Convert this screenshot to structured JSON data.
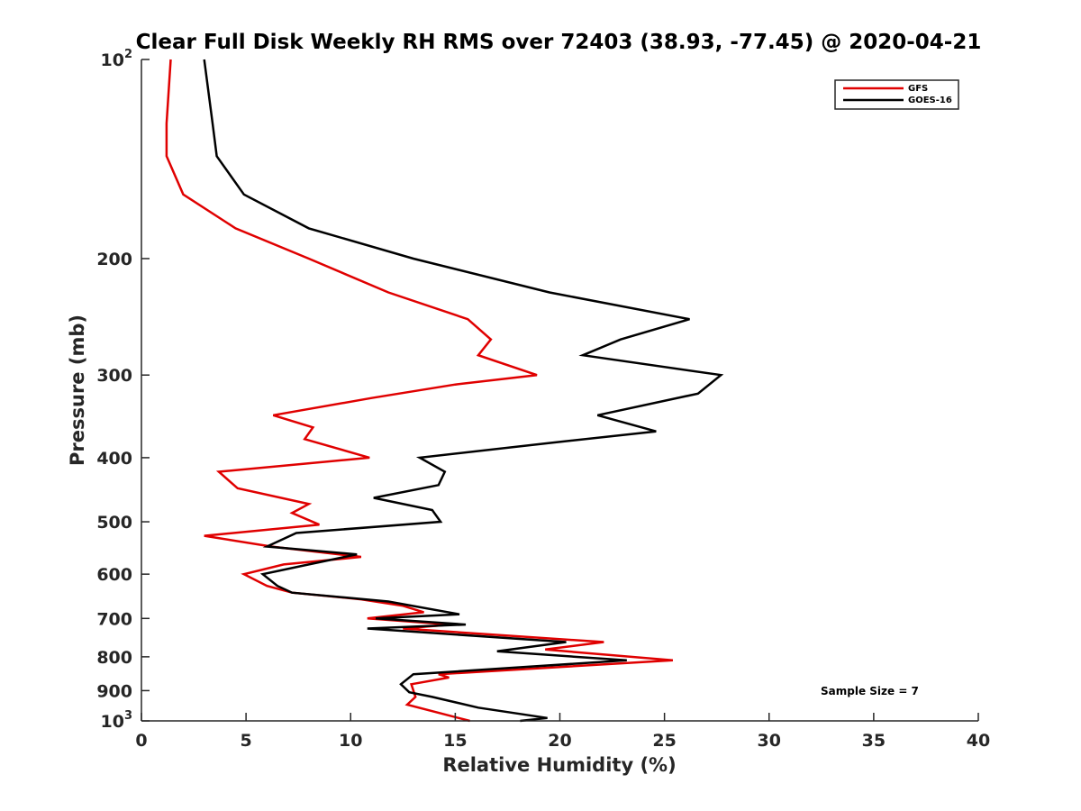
{
  "chart_data": {
    "type": "line",
    "title": "Clear Full Disk Weekly RH RMS over 72403 (38.93, -77.45) @ 2020-04-21",
    "xlabel": "Relative Humidity (%)",
    "ylabel": "Pressure (mb)",
    "xlim": [
      0,
      40
    ],
    "ylim": [
      100,
      1000
    ],
    "yscale": "log",
    "y_reversed": true,
    "grid": false,
    "legend_position": "top-right",
    "annotation": "Sample Size = 7",
    "x_ticks": [
      {
        "value": 0,
        "label": "0"
      },
      {
        "value": 5,
        "label": "5"
      },
      {
        "value": 10,
        "label": "10"
      },
      {
        "value": 15,
        "label": "15"
      },
      {
        "value": 20,
        "label": "20"
      },
      {
        "value": 25,
        "label": "25"
      },
      {
        "value": 30,
        "label": "30"
      },
      {
        "value": 35,
        "label": "35"
      },
      {
        "value": 40,
        "label": "40"
      }
    ],
    "y_ticks": [
      {
        "value": 100,
        "base": "10",
        "exp": "2"
      },
      {
        "value": 200,
        "base": "200",
        "exp": ""
      },
      {
        "value": 300,
        "base": "300",
        "exp": ""
      },
      {
        "value": 400,
        "base": "400",
        "exp": ""
      },
      {
        "value": 500,
        "base": "500",
        "exp": ""
      },
      {
        "value": 600,
        "base": "600",
        "exp": ""
      },
      {
        "value": 700,
        "base": "700",
        "exp": ""
      },
      {
        "value": 800,
        "base": "800",
        "exp": ""
      },
      {
        "value": 900,
        "base": "900",
        "exp": ""
      },
      {
        "value": 1000,
        "base": "10",
        "exp": "3"
      }
    ],
    "series": [
      {
        "name": "GFS",
        "color": "#e00000",
        "points": [
          [
            1.4,
            100
          ],
          [
            1.2,
            125
          ],
          [
            1.2,
            140
          ],
          [
            2.0,
            160
          ],
          [
            4.5,
            180
          ],
          [
            8.0,
            200
          ],
          [
            11.8,
            225
          ],
          [
            15.6,
            247
          ],
          [
            16.7,
            265
          ],
          [
            16.1,
            280
          ],
          [
            18.9,
            300
          ],
          [
            15.0,
            310
          ],
          [
            11.0,
            325
          ],
          [
            6.3,
            345
          ],
          [
            8.2,
            360
          ],
          [
            7.8,
            375
          ],
          [
            10.9,
            400
          ],
          [
            3.7,
            420
          ],
          [
            4.6,
            445
          ],
          [
            8.0,
            470
          ],
          [
            7.2,
            485
          ],
          [
            8.5,
            505
          ],
          [
            3.0,
            525
          ],
          [
            6.2,
            545
          ],
          [
            10.5,
            565
          ],
          [
            6.8,
            580
          ],
          [
            4.9,
            600
          ],
          [
            6.0,
            625
          ],
          [
            7.2,
            640
          ],
          [
            10.5,
            655
          ],
          [
            12.5,
            670
          ],
          [
            13.5,
            685
          ],
          [
            10.8,
            700
          ],
          [
            14.8,
            715
          ],
          [
            12.5,
            725
          ],
          [
            22.1,
            760
          ],
          [
            19.3,
            780
          ],
          [
            25.4,
            810
          ],
          [
            14.2,
            850
          ],
          [
            14.7,
            860
          ],
          [
            12.9,
            880
          ],
          [
            13.1,
            920
          ],
          [
            12.7,
            945
          ],
          [
            15.7,
            1000
          ]
        ]
      },
      {
        "name": "GOES-16",
        "color": "#000000",
        "points": [
          [
            3.0,
            100
          ],
          [
            3.4,
            125
          ],
          [
            3.6,
            140
          ],
          [
            4.9,
            160
          ],
          [
            8.0,
            180
          ],
          [
            13.0,
            200
          ],
          [
            19.5,
            225
          ],
          [
            26.2,
            247
          ],
          [
            22.9,
            265
          ],
          [
            21.1,
            280
          ],
          [
            27.7,
            300
          ],
          [
            26.6,
            320
          ],
          [
            21.8,
            345
          ],
          [
            24.6,
            365
          ],
          [
            19.5,
            380
          ],
          [
            13.3,
            400
          ],
          [
            14.5,
            420
          ],
          [
            14.2,
            440
          ],
          [
            11.1,
            460
          ],
          [
            13.9,
            480
          ],
          [
            14.3,
            500
          ],
          [
            7.4,
            520
          ],
          [
            6.0,
            545
          ],
          [
            10.3,
            560
          ],
          [
            8.0,
            580
          ],
          [
            5.8,
            600
          ],
          [
            6.5,
            625
          ],
          [
            7.2,
            640
          ],
          [
            11.8,
            660
          ],
          [
            15.2,
            690
          ],
          [
            11.2,
            700
          ],
          [
            15.5,
            715
          ],
          [
            10.8,
            725
          ],
          [
            20.3,
            760
          ],
          [
            17.0,
            785
          ],
          [
            23.2,
            810
          ],
          [
            13.0,
            850
          ],
          [
            12.4,
            880
          ],
          [
            12.8,
            905
          ],
          [
            13.9,
            920
          ],
          [
            16.1,
            955
          ],
          [
            19.4,
            990
          ],
          [
            18.1,
            1000
          ]
        ]
      }
    ]
  }
}
